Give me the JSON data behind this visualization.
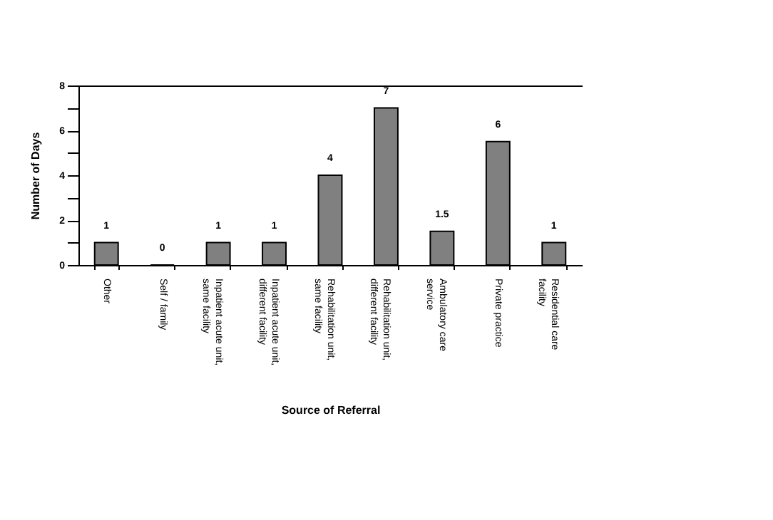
{
  "chart_data": {
    "type": "bar",
    "xlabel": "Source of Referral",
    "ylabel": "Number of Days",
    "categories": [
      "Other",
      "Self / family",
      "Inpatient acute unit, same facility",
      "Inpatient acute unit, different facility",
      "Rehabilitation unit, same facility",
      "Rehabilitation unit, different facility",
      "Ambulatory care service",
      "Private practice",
      "Residential care facility"
    ],
    "values": [
      1,
      0,
      1,
      1,
      4,
      7,
      1.5,
      5.5,
      1
    ],
    "value_labels": [
      "1",
      "0",
      "1",
      "1",
      "4",
      "7",
      "1.5",
      "6",
      "1"
    ],
    "color": "#808080",
    "ylim": [
      0,
      8
    ],
    "yticks": [
      0,
      {
        "value": 1,
        "label": null
      },
      2,
      {
        "value": 3,
        "label": null
      },
      4,
      {
        "value": 5,
        "label": null
      },
      6,
      {
        "value": 7,
        "label": null
      },
      8
    ]
  }
}
